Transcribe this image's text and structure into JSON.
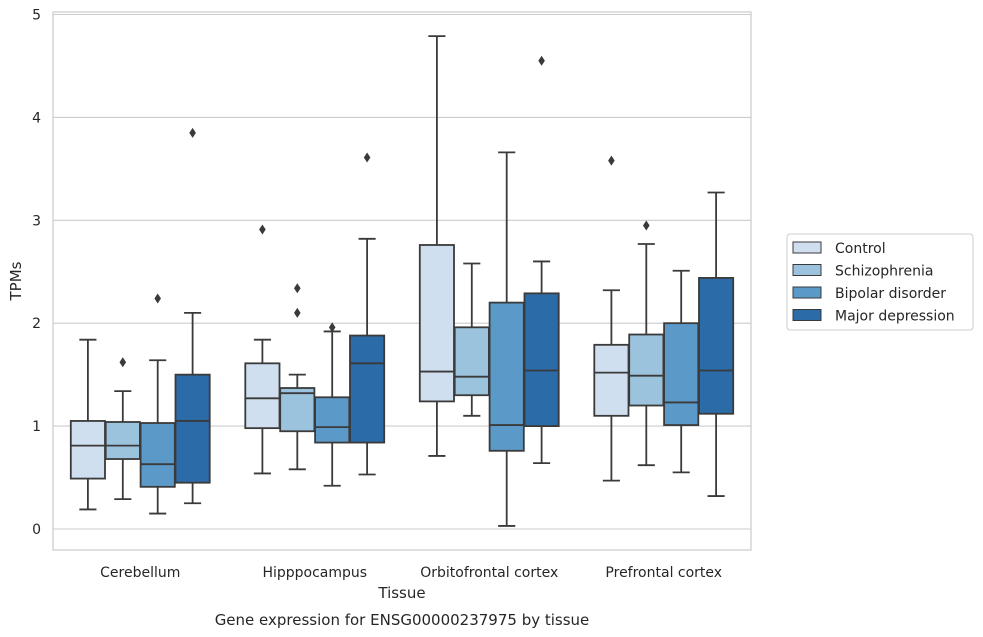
{
  "chart_data": {
    "type": "box",
    "title": "",
    "caption": "Gene expression for ENSG00000237975 by tissue",
    "xlabel": "Tissue",
    "ylabel": "TPMs",
    "ylim": [
      -0.2,
      5.05
    ],
    "yticks": [
      0,
      1,
      2,
      3,
      4,
      5
    ],
    "grid": "horizontal",
    "legend_position": "right",
    "categories": [
      "Cerebellum",
      "Hipppocampus",
      "Orbitofrontal cortex",
      "Prefrontal cortex"
    ],
    "series": [
      {
        "name": "Control",
        "color": "#d0dff0",
        "boxes": [
          {
            "whislo": 0.19,
            "q1": 0.49,
            "med": 0.81,
            "q3": 1.05,
            "whishi": 1.84,
            "fliers": []
          },
          {
            "whislo": 0.54,
            "q1": 0.98,
            "med": 1.27,
            "q3": 1.61,
            "whishi": 1.84,
            "fliers": [
              2.91
            ]
          },
          {
            "whislo": 0.71,
            "q1": 1.24,
            "med": 1.53,
            "q3": 2.76,
            "whishi": 4.79,
            "fliers": []
          },
          {
            "whislo": 0.47,
            "q1": 1.1,
            "med": 1.52,
            "q3": 1.79,
            "whishi": 2.32,
            "fliers": [
              3.58
            ]
          }
        ]
      },
      {
        "name": "Schizophrenia",
        "color": "#9cc3dd",
        "boxes": [
          {
            "whislo": 0.29,
            "q1": 0.68,
            "med": 0.81,
            "q3": 1.04,
            "whishi": 1.34,
            "fliers": [
              1.62
            ]
          },
          {
            "whislo": 0.58,
            "q1": 0.95,
            "med": 1.32,
            "q3": 1.37,
            "whishi": 1.5,
            "fliers": [
              2.34,
              2.1
            ]
          },
          {
            "whislo": 1.1,
            "q1": 1.3,
            "med": 1.48,
            "q3": 1.96,
            "whishi": 2.58,
            "fliers": []
          },
          {
            "whislo": 0.62,
            "q1": 1.2,
            "med": 1.49,
            "q3": 1.89,
            "whishi": 2.77,
            "fliers": [
              2.95
            ]
          }
        ]
      },
      {
        "name": "Bipolar disorder",
        "color": "#5b9ac8",
        "boxes": [
          {
            "whislo": 0.15,
            "q1": 0.41,
            "med": 0.63,
            "q3": 1.03,
            "whishi": 1.64,
            "fliers": [
              2.24
            ]
          },
          {
            "whislo": 0.42,
            "q1": 0.84,
            "med": 0.99,
            "q3": 1.28,
            "whishi": 1.92,
            "fliers": [
              1.96
            ]
          },
          {
            "whislo": 0.03,
            "q1": 0.76,
            "med": 1.01,
            "q3": 2.2,
            "whishi": 3.66,
            "fliers": []
          },
          {
            "whislo": 0.55,
            "q1": 1.01,
            "med": 1.23,
            "q3": 2.0,
            "whishi": 2.51,
            "fliers": []
          }
        ]
      },
      {
        "name": "Major depression",
        "color": "#2b6ba8",
        "boxes": [
          {
            "whislo": 0.25,
            "q1": 0.45,
            "med": 1.05,
            "q3": 1.5,
            "whishi": 2.1,
            "fliers": [
              3.85
            ]
          },
          {
            "whislo": 0.53,
            "q1": 0.84,
            "med": 1.61,
            "q3": 1.88,
            "whishi": 2.82,
            "fliers": [
              3.61
            ]
          },
          {
            "whislo": 0.64,
            "q1": 1.0,
            "med": 1.54,
            "q3": 2.29,
            "whishi": 2.6,
            "fliers": [
              4.55
            ]
          },
          {
            "whislo": 0.32,
            "q1": 1.12,
            "med": 1.54,
            "q3": 2.44,
            "whishi": 3.27,
            "fliers": []
          }
        ]
      }
    ]
  }
}
